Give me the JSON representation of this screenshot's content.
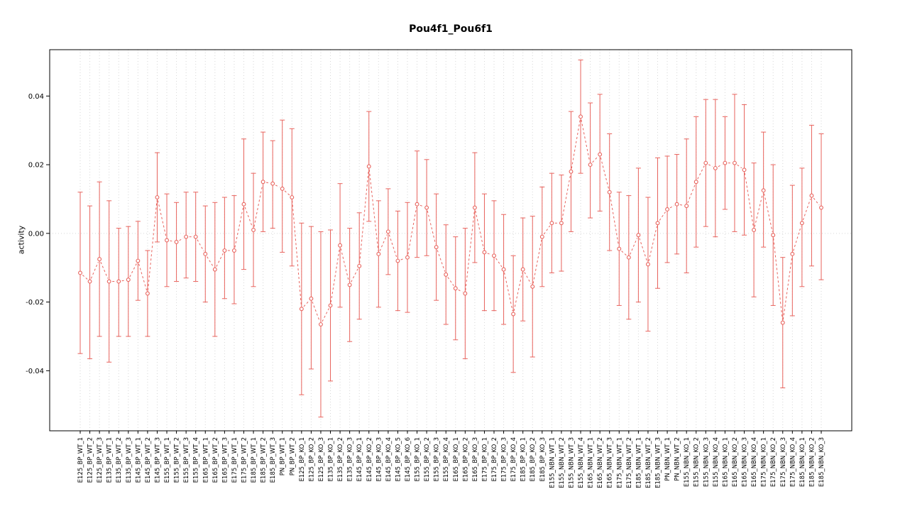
{
  "title": "Pou4f1_Pou6f1",
  "colors": {
    "series": "#e8635d",
    "grid": "#d6d6d6",
    "box": "#000000",
    "background": "#ffffff"
  },
  "chart_data": {
    "type": "scatter",
    "title": "Pou4f1_Pou6f1",
    "xlabel": "",
    "ylabel": "activity",
    "ylim": [
      -0.0575,
      0.0535
    ],
    "yticks": [
      -0.04,
      -0.02,
      0,
      0.02,
      0.04
    ],
    "ytick_labels": [
      "-0.04",
      "-0.02",
      "0.00",
      "0.02",
      "0.04"
    ],
    "grid": "dotted vertical line at every category; dotted horizontal line at y=0",
    "legend": "none",
    "point_style": "open-circle",
    "line_style": "dashed-connecting-line",
    "error_bars": true,
    "categories": [
      "E125_BP_WT_1",
      "E125_BP_WT_2",
      "E125_BP_WT_3",
      "E135_BP_WT_1",
      "E135_BP_WT_2",
      "E135_BP_WT_3",
      "E145_BP_WT_1",
      "E145_BP_WT_2",
      "E145_BP_WT_3",
      "E155_BP_WT_1",
      "E155_BP_WT_2",
      "E155_BP_WT_3",
      "E155_BP_WT_4",
      "E165_BP_WT_1",
      "E165_BP_WT_2",
      "E165_BP_WT_3",
      "E175_BP_WT_1",
      "E175_BP_WT_2",
      "E185_BP_WT_1",
      "E185_BP_WT_2",
      "E185_BP_WT_3",
      "PN_BP_WT_1",
      "PN_BP_WT_2",
      "E125_BP_KO_1",
      "E125_BP_KO_2",
      "E125_BP_KO_3",
      "E135_BP_KO_1",
      "E135_BP_KO_2",
      "E135_BP_KO_3",
      "E145_BP_KO_1",
      "E145_BP_KO_2",
      "E145_BP_KO_3",
      "E145_BP_KO_4",
      "E145_BP_KO_5",
      "E145_BP_KO_6",
      "E155_BP_KO_1",
      "E155_BP_KO_2",
      "E155_BP_KO_3",
      "E155_BP_KO_4",
      "E165_BP_KO_1",
      "E165_BP_KO_2",
      "E165_BP_KO_3",
      "E175_BP_KO_1",
      "E175_BP_KO_2",
      "E175_BP_KO_3",
      "E175_BP_KO_4",
      "E185_BP_KO_1",
      "E185_BP_KO_2",
      "E185_BP_KO_3",
      "E155_NBN_WT_1",
      "E155_NBN_WT_2",
      "E155_NBN_WT_3",
      "E155_NBN_WT_4",
      "E165_NBN_WT_1",
      "E165_NBN_WT_2",
      "E165_NBN_WT_3",
      "E175_NBN_WT_1",
      "E175_NBN_WT_2",
      "E185_NBN_WT_1",
      "E185_NBN_WT_2",
      "E185_NBN_WT_3",
      "PN_NBN_WT_1",
      "PN_NBN_WT_2",
      "E155_NBN_KO_1",
      "E155_NBN_KO_2",
      "E155_NBN_KO_3",
      "E155_NBN_KO_4",
      "E165_NBN_KO_1",
      "E165_NBN_KO_2",
      "E165_NBN_KO_3",
      "E165_NBN_KO_4",
      "E175_NBN_KO_1",
      "E175_NBN_KO_2",
      "E175_NBN_KO_3",
      "E175_NBN_KO_4",
      "E185_NBN_KO_1",
      "E185_NBN_KO_2",
      "E185_NBN_KO_3"
    ],
    "series": [
      {
        "name": "activity",
        "values": [
          -0.0115,
          -0.014,
          -0.0075,
          -0.014,
          -0.014,
          -0.0135,
          -0.008,
          -0.0175,
          0.0105,
          -0.002,
          -0.0025,
          -0.001,
          -0.001,
          -0.006,
          -0.0105,
          -0.005,
          -0.005,
          0.0085,
          0.001,
          0.015,
          0.0145,
          0.013,
          0.0105,
          -0.022,
          -0.019,
          -0.0265,
          -0.021,
          -0.0035,
          -0.015,
          -0.0095,
          0.0195,
          -0.006,
          0.0005,
          -0.008,
          -0.007,
          0.0085,
          0.0075,
          -0.004,
          -0.012,
          -0.016,
          -0.0175,
          0.0075,
          -0.0055,
          -0.0065,
          -0.0105,
          -0.0235,
          -0.0105,
          -0.0155,
          -0.001,
          0.003,
          0.003,
          0.018,
          0.034,
          0.02,
          0.023,
          0.012,
          -0.0045,
          -0.007,
          -0.0005,
          -0.009,
          0.003,
          0.007,
          0.0085,
          0.008,
          0.015,
          0.0205,
          0.019,
          0.0205,
          0.0205,
          0.0185,
          0.001,
          0.0125,
          -0.0005,
          -0.026,
          -0.006,
          0.003,
          0.011,
          0.0075
        ],
        "lower": [
          -0.035,
          -0.0365,
          -0.03,
          -0.0375,
          -0.03,
          -0.03,
          -0.0195,
          -0.03,
          -0.0025,
          -0.0155,
          -0.014,
          -0.013,
          -0.014,
          -0.02,
          -0.03,
          -0.019,
          -0.0205,
          -0.0105,
          -0.0155,
          0.0005,
          0.0015,
          -0.0055,
          -0.0095,
          -0.047,
          -0.0395,
          -0.0535,
          -0.043,
          -0.0215,
          -0.0315,
          -0.025,
          0.0035,
          -0.0215,
          -0.012,
          -0.0225,
          -0.023,
          -0.007,
          -0.0065,
          -0.0195,
          -0.0265,
          -0.031,
          -0.0365,
          -0.0085,
          -0.0225,
          -0.0225,
          -0.0265,
          -0.0405,
          -0.0255,
          -0.036,
          -0.0155,
          -0.0115,
          -0.011,
          0.0005,
          0.0175,
          0.0045,
          0.0065,
          -0.005,
          -0.021,
          -0.025,
          -0.02,
          -0.0285,
          -0.016,
          -0.0085,
          -0.006,
          -0.0115,
          -0.004,
          0.002,
          -0.001,
          0.007,
          0.0005,
          -0.0005,
          -0.0185,
          -0.004,
          -0.021,
          -0.045,
          -0.024,
          -0.0155,
          -0.0095,
          -0.0135
        ],
        "upper": [
          0.012,
          0.008,
          0.015,
          0.0095,
          0.0015,
          0.002,
          0.0035,
          -0.005,
          0.0235,
          0.0115,
          0.009,
          0.012,
          0.012,
          0.008,
          0.009,
          0.0105,
          0.011,
          0.0275,
          0.0175,
          0.0295,
          0.027,
          0.033,
          0.0305,
          0.003,
          0.002,
          0.0005,
          0.001,
          0.0145,
          0.0015,
          0.006,
          0.0355,
          0.0095,
          0.013,
          0.0065,
          0.009,
          0.024,
          0.0215,
          0.0115,
          0.0025,
          -0.001,
          0.0015,
          0.0235,
          0.0115,
          0.0095,
          0.0055,
          -0.0065,
          0.0045,
          0.005,
          0.0135,
          0.0175,
          0.017,
          0.0355,
          0.0505,
          0.038,
          0.0405,
          0.029,
          0.012,
          0.011,
          0.019,
          0.0105,
          0.022,
          0.0225,
          0.023,
          0.0275,
          0.034,
          0.039,
          0.039,
          0.034,
          0.0405,
          0.0375,
          0.0205,
          0.0295,
          0.02,
          -0.007,
          0.014,
          0.019,
          0.0315,
          0.029
        ]
      }
    ]
  }
}
